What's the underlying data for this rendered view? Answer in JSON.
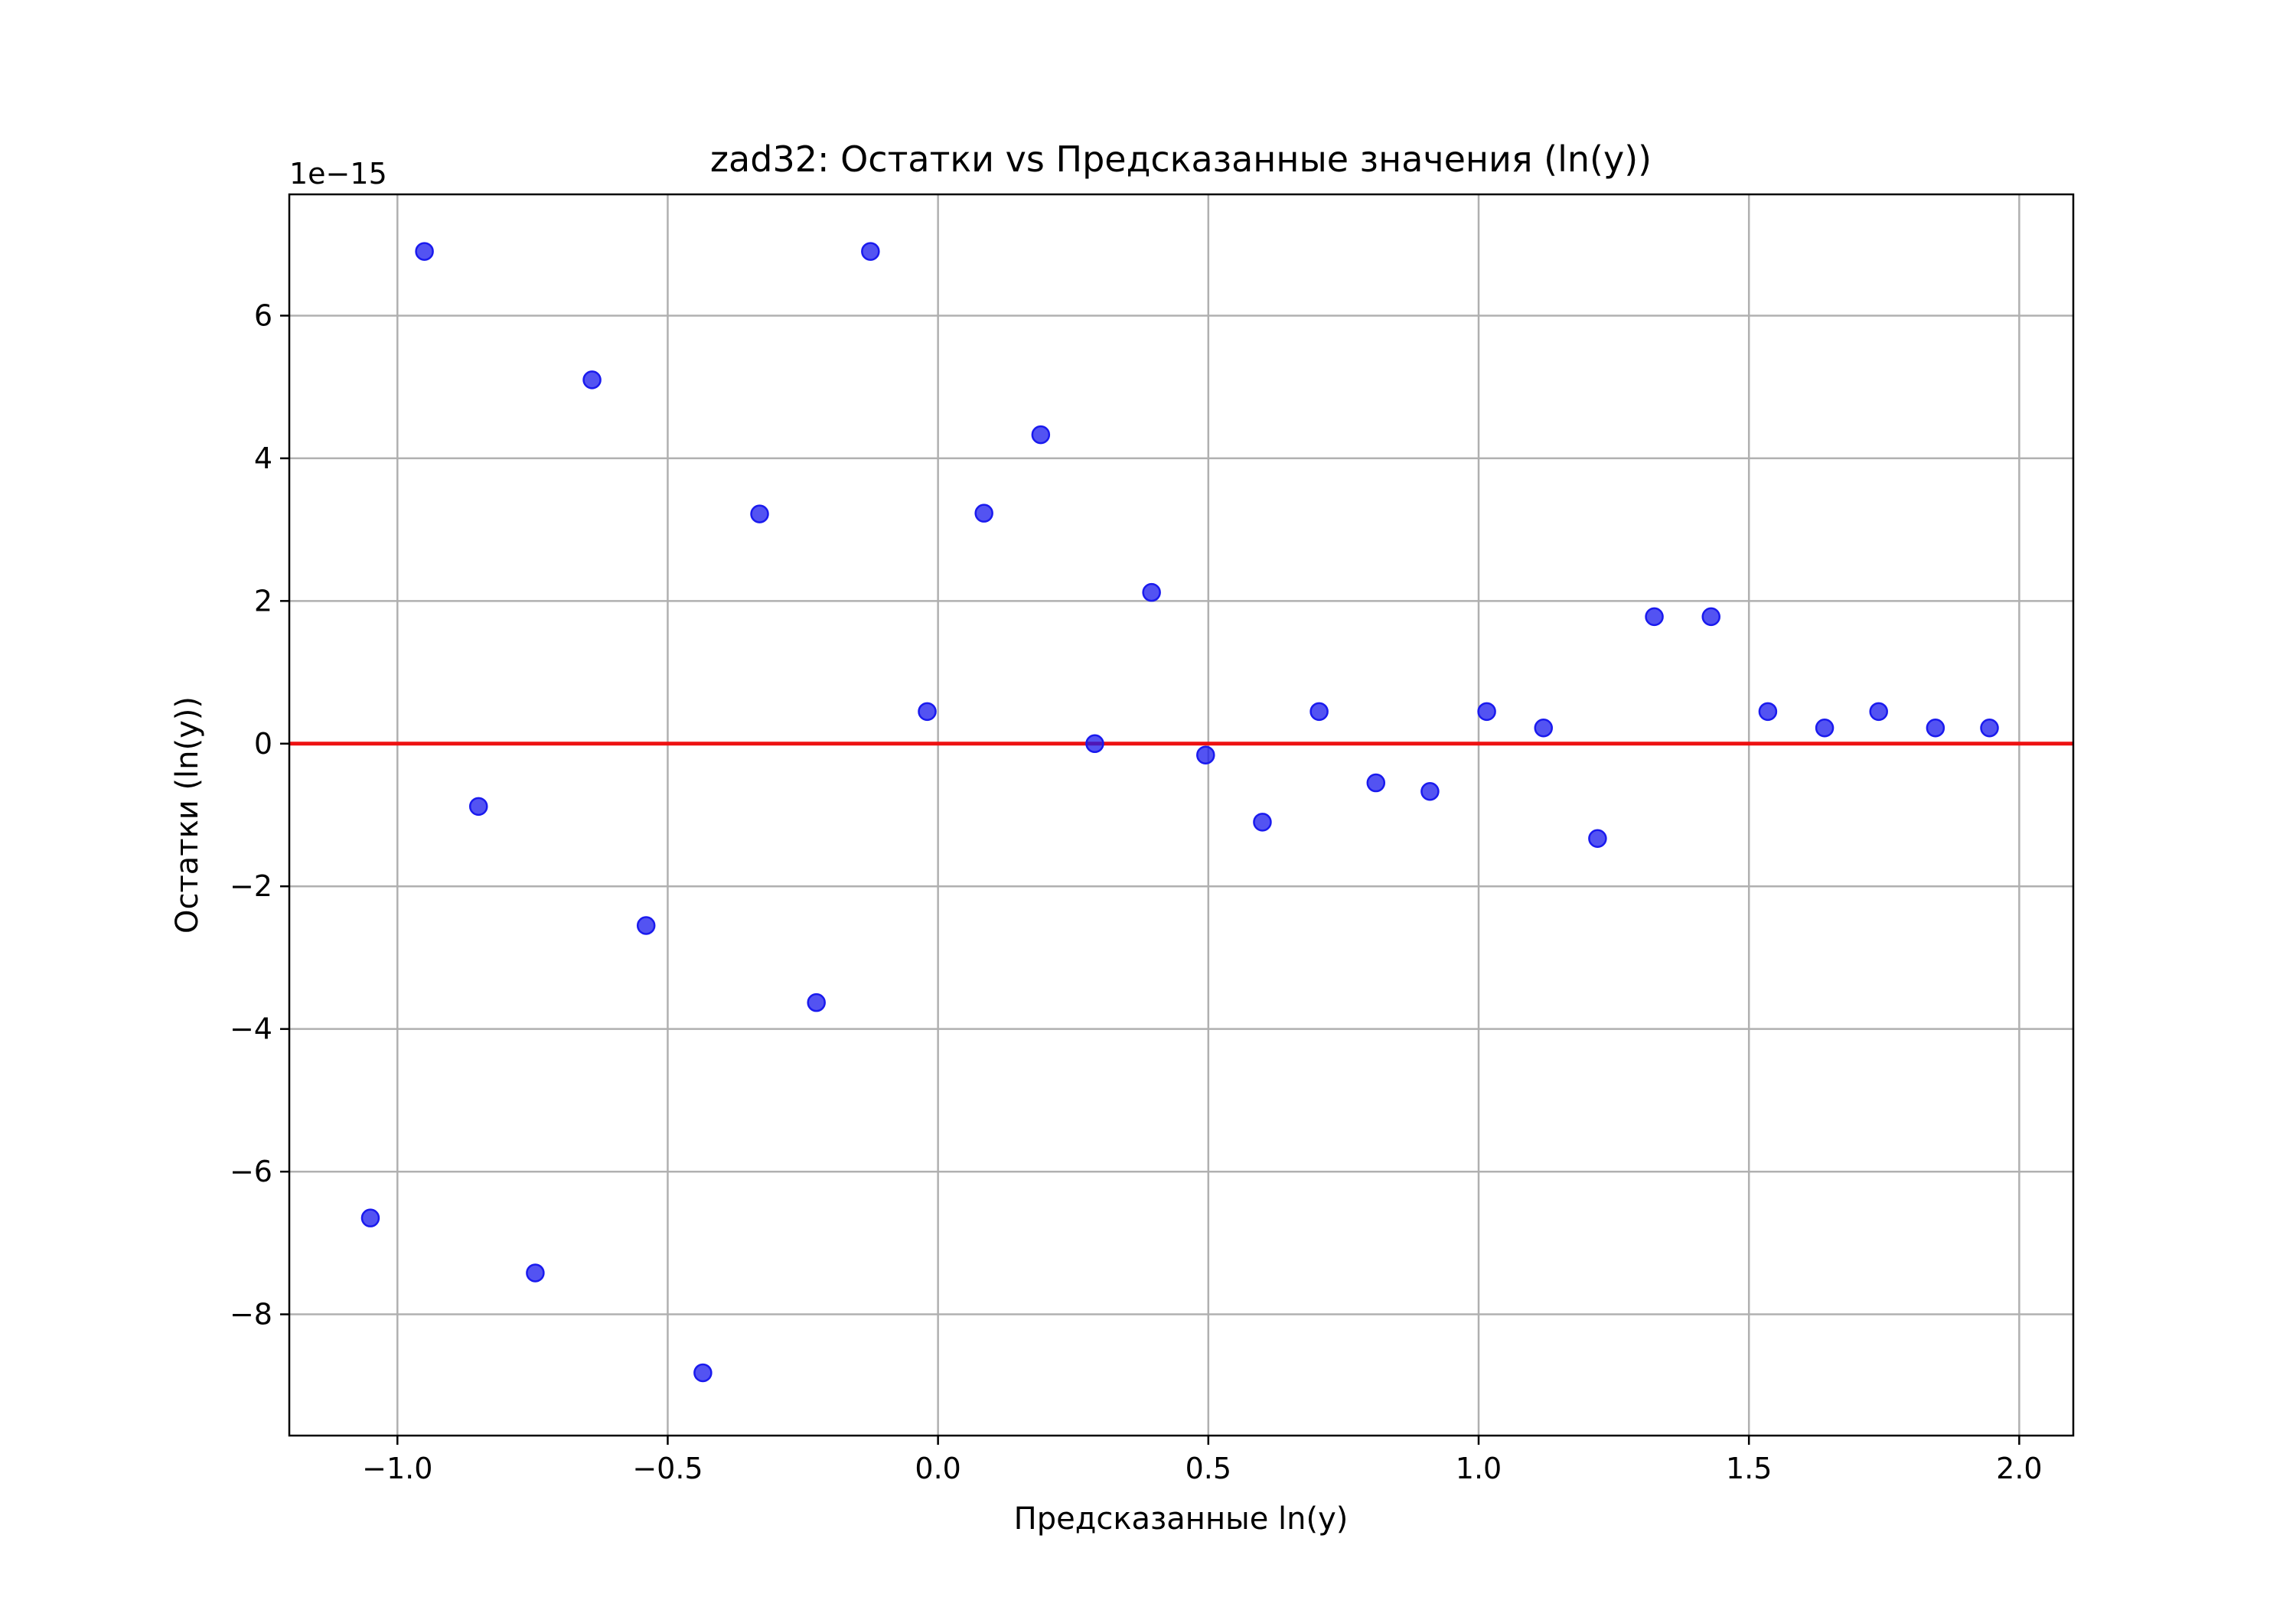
{
  "chart_data": {
    "type": "scatter",
    "title": "zad32: Остатки vs Предсказанные значения (ln(y))",
    "xlabel": "Предсказанные ln(y)",
    "ylabel": "Остатки (ln(y))",
    "y_offset_label": "1e−15",
    "xlim": [
      -1.2,
      2.1
    ],
    "ylim": [
      -9.7,
      7.7
    ],
    "x_ticks": [
      -1.0,
      -0.5,
      0.0,
      0.5,
      1.0,
      1.5,
      2.0
    ],
    "x_tick_labels": [
      "−1.0",
      "−0.5",
      "0.0",
      "0.5",
      "1.0",
      "1.5",
      "2.0"
    ],
    "y_ticks": [
      -8,
      -6,
      -4,
      -2,
      0,
      2,
      4,
      6
    ],
    "y_tick_labels": [
      "−8",
      "−6",
      "−4",
      "−2",
      "0",
      "2",
      "4",
      "6"
    ],
    "grid": true,
    "reference_line": {
      "y": 0,
      "color": "#ee1111"
    },
    "point_color": "#1a1aee",
    "series": [
      {
        "points": [
          {
            "x": -1.05,
            "y": -6.65
          },
          {
            "x": -0.95,
            "y": 6.9
          },
          {
            "x": -0.85,
            "y": -0.88
          },
          {
            "x": -0.745,
            "y": -7.42
          },
          {
            "x": -0.64,
            "y": 5.1
          },
          {
            "x": -0.54,
            "y": -2.55
          },
          {
            "x": -0.435,
            "y": -8.82
          },
          {
            "x": -0.33,
            "y": 3.22
          },
          {
            "x": -0.225,
            "y": -3.63
          },
          {
            "x": -0.125,
            "y": 6.9
          },
          {
            "x": -0.02,
            "y": 0.45
          },
          {
            "x": 0.085,
            "y": 3.23
          },
          {
            "x": 0.19,
            "y": 4.33
          },
          {
            "x": 0.29,
            "y": 0.0
          },
          {
            "x": 0.395,
            "y": 2.12
          },
          {
            "x": 0.495,
            "y": -0.16
          },
          {
            "x": 0.6,
            "y": -1.1
          },
          {
            "x": 0.705,
            "y": 0.45
          },
          {
            "x": 0.81,
            "y": -0.55
          },
          {
            "x": 0.91,
            "y": -0.67
          },
          {
            "x": 1.015,
            "y": 0.45
          },
          {
            "x": 1.12,
            "y": 0.22
          },
          {
            "x": 1.22,
            "y": -1.33
          },
          {
            "x": 1.325,
            "y": 1.78
          },
          {
            "x": 1.43,
            "y": 1.78
          },
          {
            "x": 1.535,
            "y": 0.45
          },
          {
            "x": 1.64,
            "y": 0.22
          },
          {
            "x": 1.74,
            "y": 0.45
          },
          {
            "x": 1.845,
            "y": 0.22
          },
          {
            "x": 1.945,
            "y": 0.22
          }
        ]
      }
    ]
  }
}
